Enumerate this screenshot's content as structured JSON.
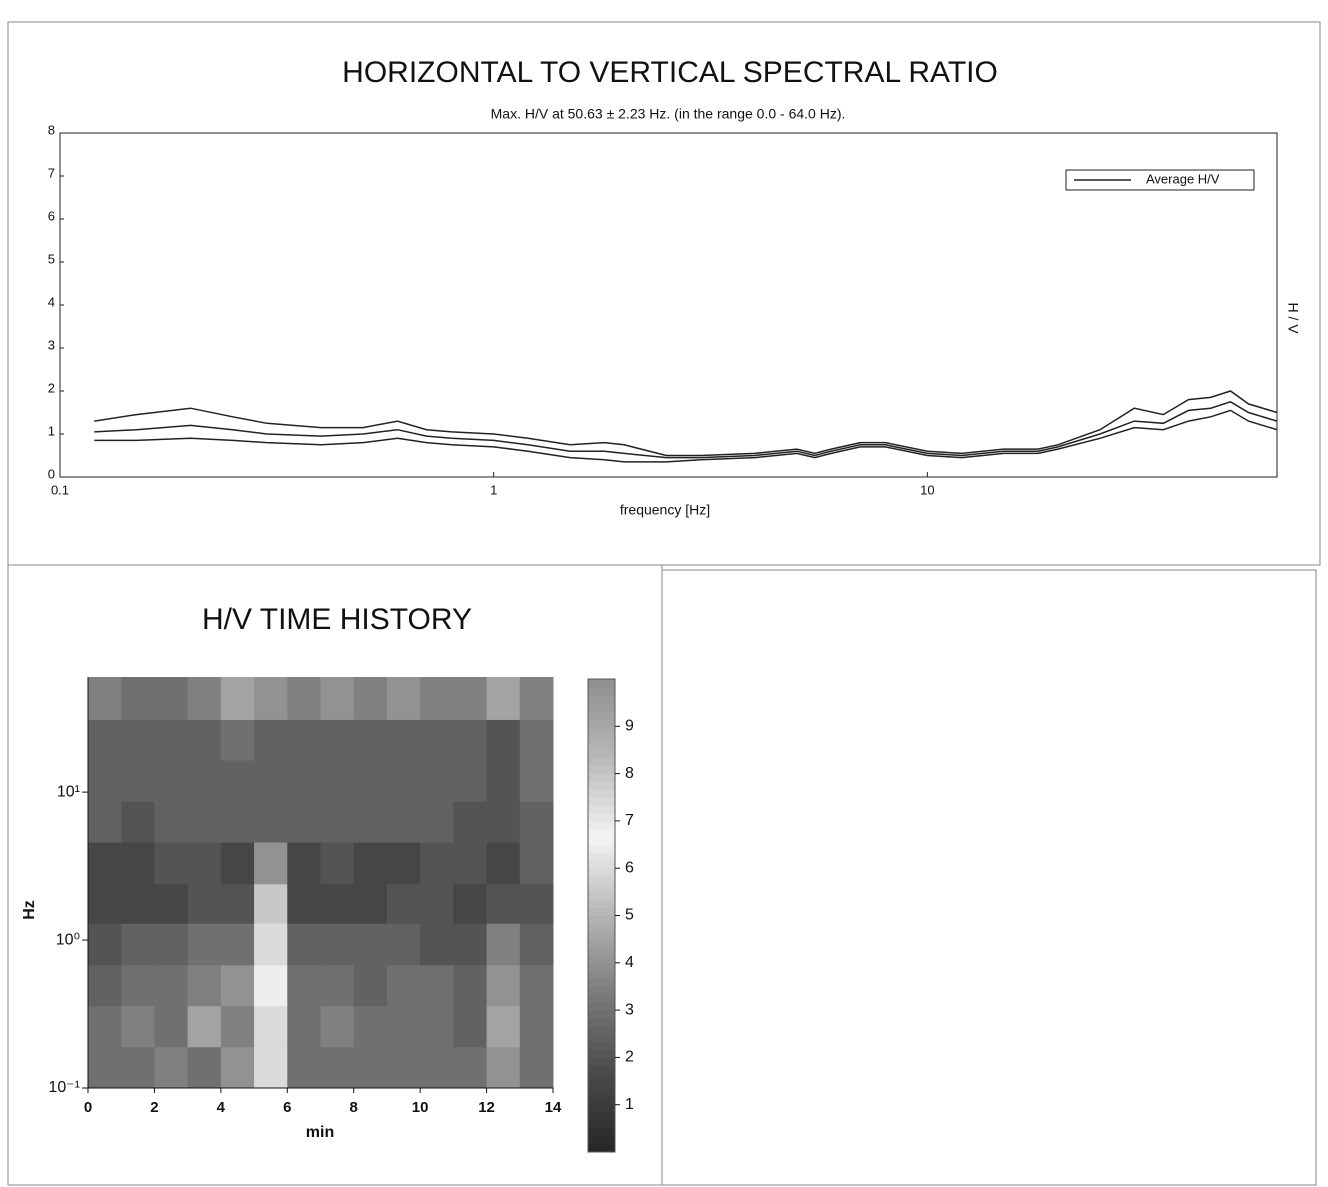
{
  "chart_data": [
    {
      "type": "line",
      "title": "HORIZONTAL TO VERTICAL SPECTRAL RATIO",
      "subtitle": "Max. H/V at 50.63 ± 2.23 Hz. (in the range 0.0 - 64.0 Hz).",
      "x_label": "frequency [Hz]",
      "y_label": "H / V",
      "x_log": true,
      "xlim": [
        0.1,
        64
      ],
      "xticks": [
        0.1,
        1,
        10
      ],
      "ylim": [
        0,
        8
      ],
      "yticks": [
        0,
        1,
        2,
        3,
        4,
        5,
        6,
        7,
        8
      ],
      "legend": "upper right",
      "x": [
        0.12,
        0.15,
        0.2,
        0.25,
        0.3,
        0.4,
        0.5,
        0.6,
        0.7,
        0.8,
        1,
        1.2,
        1.5,
        1.8,
        2,
        2.5,
        3,
        4,
        5,
        5.5,
        6,
        7,
        8,
        10,
        12,
        15,
        18,
        20,
        25,
        30,
        35,
        40,
        45,
        50,
        55,
        64
      ],
      "series": [
        {
          "name": "Average H/V",
          "color": "#222222",
          "values": [
            1.05,
            1.1,
            1.2,
            1.1,
            1.0,
            0.95,
            1.0,
            1.1,
            0.95,
            0.9,
            0.85,
            0.75,
            0.6,
            0.6,
            0.55,
            0.45,
            0.45,
            0.5,
            0.6,
            0.5,
            0.6,
            0.75,
            0.75,
            0.55,
            0.5,
            0.6,
            0.6,
            0.7,
            1.0,
            1.3,
            1.25,
            1.55,
            1.6,
            1.75,
            1.5,
            1.3
          ]
        },
        {
          "color": "#222222",
          "values": [
            1.3,
            1.45,
            1.6,
            1.4,
            1.25,
            1.15,
            1.15,
            1.3,
            1.1,
            1.05,
            1.0,
            0.9,
            0.75,
            0.8,
            0.75,
            0.5,
            0.5,
            0.55,
            0.65,
            0.55,
            0.65,
            0.8,
            0.8,
            0.6,
            0.55,
            0.65,
            0.65,
            0.75,
            1.1,
            1.6,
            1.45,
            1.8,
            1.85,
            2.0,
            1.7,
            1.5
          ]
        },
        {
          "color": "#222222",
          "values": [
            0.85,
            0.85,
            0.9,
            0.85,
            0.8,
            0.75,
            0.8,
            0.9,
            0.8,
            0.75,
            0.7,
            0.6,
            0.45,
            0.4,
            0.35,
            0.35,
            0.4,
            0.45,
            0.55,
            0.45,
            0.55,
            0.7,
            0.7,
            0.5,
            0.45,
            0.55,
            0.55,
            0.65,
            0.9,
            1.15,
            1.1,
            1.3,
            1.4,
            1.55,
            1.3,
            1.1
          ]
        }
      ]
    },
    {
      "type": "heatmap",
      "title": "H/V TIME HISTORY",
      "x_label": "min",
      "y_label": "Hz",
      "y_log": true,
      "xlim": [
        0,
        14
      ],
      "xticks": [
        0,
        2,
        4,
        6,
        8,
        10,
        12,
        14
      ],
      "ylim": [
        0.1,
        60
      ],
      "yticks": [
        {
          "value": 0.1,
          "label": "10⁻¹"
        },
        {
          "value": 1,
          "label": "10⁰"
        },
        {
          "value": 10,
          "label": "10¹"
        }
      ],
      "clim": [
        0,
        10
      ],
      "cticks": [
        1,
        2,
        3,
        4,
        5,
        6,
        7,
        8,
        9
      ],
      "colorscale": [
        "#262626",
        "#4a4a4a",
        "#7a7a7a",
        "#b5b5b5",
        "#f4f4f4",
        "#b8b8b8",
        "#8e8e8e"
      ],
      "x_bins": [
        0,
        1,
        2,
        3,
        4,
        5,
        6,
        7,
        8,
        9,
        10,
        11,
        12,
        13,
        14
      ],
      "y_bins": [
        0.1,
        0.19,
        0.36,
        0.68,
        1.3,
        2.4,
        4.6,
        8.7,
        16.5,
        31,
        60
      ],
      "z": [
        [
          3,
          3,
          3.5,
          3,
          4,
          6,
          3,
          3,
          3,
          3,
          3,
          3,
          4,
          3
        ],
        [
          3,
          3.5,
          3,
          4.5,
          3.5,
          6,
          3,
          3.5,
          3,
          3,
          3,
          2.5,
          4.5,
          3
        ],
        [
          2.5,
          3,
          3,
          3.5,
          4,
          6.5,
          3,
          3,
          2.5,
          3,
          3,
          2.5,
          4,
          3
        ],
        [
          2,
          2.5,
          2.5,
          3,
          3,
          6,
          2.5,
          2.5,
          2.5,
          2.5,
          2,
          2,
          3.5,
          2.5
        ],
        [
          1.5,
          1.5,
          1.5,
          2,
          2,
          5.5,
          1.5,
          1.5,
          1.5,
          2,
          2,
          1.5,
          2,
          2
        ],
        [
          1.5,
          1.5,
          2,
          2,
          1.5,
          4,
          1.5,
          2,
          1.5,
          1.5,
          2,
          2,
          1.5,
          2.5
        ],
        [
          2.5,
          2,
          2.5,
          2.5,
          2.5,
          2.5,
          2.5,
          2.5,
          2.5,
          2.5,
          2.5,
          2,
          2,
          2.5
        ],
        [
          2.5,
          2.5,
          2.5,
          2.5,
          2.5,
          2.5,
          2.5,
          2.5,
          2.5,
          2.5,
          2.5,
          2.5,
          2,
          3
        ],
        [
          2.5,
          2.5,
          2.5,
          2.5,
          3,
          2.5,
          2.5,
          2.5,
          2.5,
          2.5,
          2.5,
          2.5,
          2,
          3
        ],
        [
          3.5,
          3,
          3,
          3.5,
          4.5,
          4,
          3.5,
          4,
          3.5,
          4,
          3.5,
          3.5,
          4.5,
          3.5
        ]
      ]
    }
  ]
}
